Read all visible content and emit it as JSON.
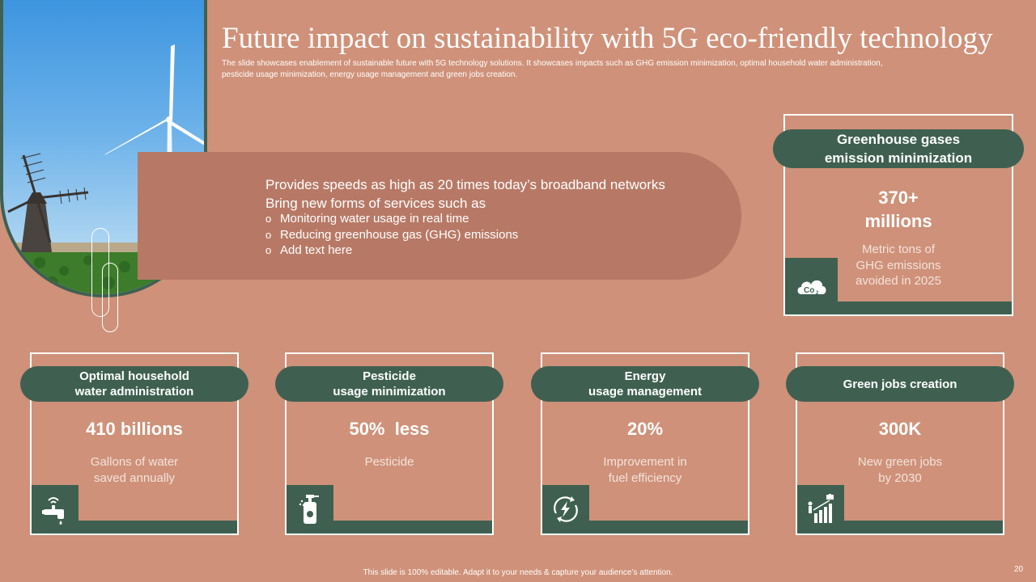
{
  "title": "Future impact on sustainability with 5G eco-friendly technology",
  "subtitle": "The slide showcases enablement of sustainable future with 5G technology solutions. It showcases impacts such as GHG emission minimization, optimal household water administration, pesticide usage minimization, energy usage management and green jobs creation.",
  "banner": {
    "line1": "Provides speeds as high as 20 times today’s broadband networks",
    "line2": "Bring new forms of services such as",
    "bullets": [
      "Monitoring water usage in real time",
      "Reducing greenhouse gas (GHG) emissions",
      "Add text here"
    ]
  },
  "cards": {
    "ghg": {
      "head1": "Greenhouse gases",
      "head2": "emission minimization",
      "value1": "370+",
      "value2": "millions",
      "desc1": "Metric tons of",
      "desc2": "GHG emissions",
      "desc3": "avoided in 2025",
      "icon": "co2-cloud-icon"
    },
    "water": {
      "head1": "Optimal household",
      "head2": "water administration",
      "value": "410 billions",
      "desc1": "Gallons of water",
      "desc2": "saved annually",
      "icon": "smart-faucet-icon"
    },
    "pesticide": {
      "head1": "Pesticide",
      "head2": "usage minimization",
      "value": "50%  less",
      "desc1": "Pesticide",
      "icon": "spray-bottle-icon"
    },
    "energy": {
      "head1": "Energy",
      "head2": "usage management",
      "value": "20%",
      "desc1": "Improvement in",
      "desc2": "fuel efficiency",
      "icon": "energy-cycle-icon"
    },
    "jobs": {
      "head1": "Green jobs creation",
      "value": "300K",
      "desc1": "New green jobs",
      "desc2": "by 2030",
      "icon": "growth-chart-icon"
    }
  },
  "footer": "This slide is 100% editable. Adapt it to your needs & capture your audience’s attention.",
  "page_number": "20",
  "colors": {
    "background": "#cf9179",
    "dark_green": "#3f6051",
    "banner": "#b77966"
  }
}
